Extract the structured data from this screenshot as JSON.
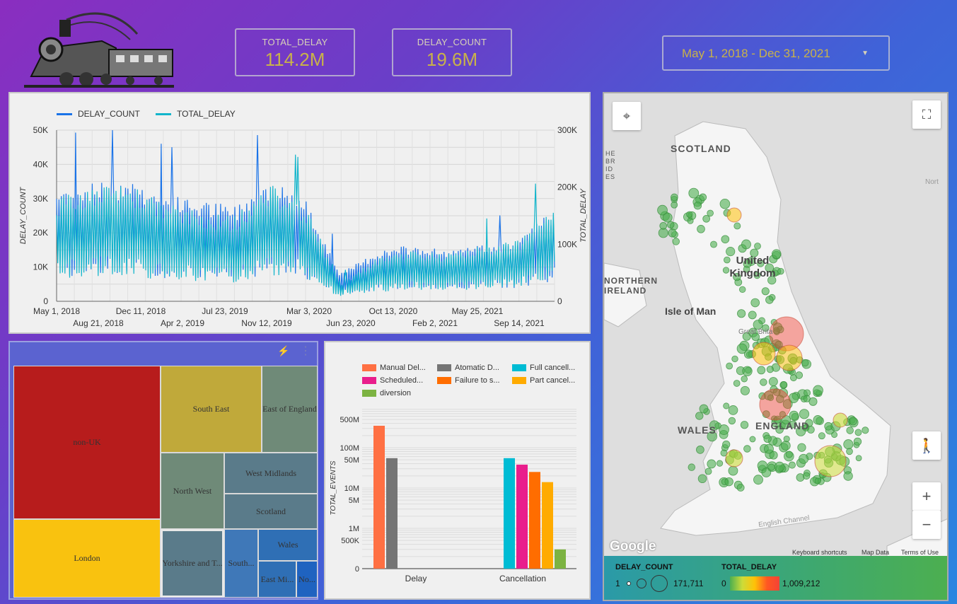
{
  "header": {
    "kpis": [
      {
        "label": "TOTAL_DELAY",
        "value": "114.2M"
      },
      {
        "label": "DELAY_COUNT",
        "value": "19.6M"
      }
    ],
    "date_range": "May 1, 2018 - Dec 31, 2021"
  },
  "colors": {
    "delay_count": "#1a73e8",
    "total_delay": "#12b5cb"
  },
  "line_chart": {
    "legend": [
      "DELAY_COUNT",
      "TOTAL_DELAY"
    ],
    "y_left_label": "DELAY_COUNT",
    "y_right_label": "TOTAL_DELAY",
    "y_left_ticks": [
      "50K",
      "40K",
      "30K",
      "20K",
      "10K",
      "0"
    ],
    "y_right_ticks": [
      "300K",
      "200K",
      "100K",
      "0"
    ],
    "x_ticks_top": [
      "May 1, 2018",
      "Dec 11, 2018",
      "Jul 23, 2019",
      "Mar 3, 2020",
      "Oct 13, 2020",
      "May 25, 2021"
    ],
    "x_ticks_bottom": [
      "Aug 21, 2018",
      "Apr 2, 2019",
      "Nov 12, 2019",
      "Jun 23, 2020",
      "Feb 2, 2021",
      "Sep 14, 2021"
    ]
  },
  "chart_data": [
    {
      "type": "line",
      "x_range": [
        "2018-05-01",
        "2021-12-31"
      ],
      "series": [
        {
          "name": "DELAY_COUNT",
          "axis": "left",
          "x": [
            "2018-05",
            "2018-08",
            "2018-11",
            "2019-02",
            "2019-05",
            "2019-08",
            "2019-11",
            "2020-02",
            "2020-05",
            "2020-08",
            "2020-11",
            "2021-02",
            "2021-05",
            "2021-08",
            "2021-11"
          ],
          "values": [
            20000,
            21000,
            22000,
            19000,
            18000,
            17000,
            22000,
            18000,
            5000,
            9000,
            10000,
            9000,
            10000,
            11000,
            17000
          ]
        },
        {
          "name": "TOTAL_DELAY",
          "axis": "right",
          "x": [
            "2018-05",
            "2018-08",
            "2018-11",
            "2019-02",
            "2019-05",
            "2019-08",
            "2019-11",
            "2020-02",
            "2020-05",
            "2020-08",
            "2020-11",
            "2021-02",
            "2021-05",
            "2021-08",
            "2021-11"
          ],
          "values": [
            110000,
            120000,
            125000,
            105000,
            95000,
            90000,
            125000,
            100000,
            20000,
            45000,
            55000,
            50000,
            60000,
            65000,
            110000
          ]
        }
      ],
      "ylim_left": [
        0,
        50000
      ],
      "ylim_right": [
        0,
        300000
      ]
    },
    {
      "type": "treemap",
      "cells": [
        {
          "label": "non-UK"
        },
        {
          "label": "South East"
        },
        {
          "label": "East of England"
        },
        {
          "label": "London"
        },
        {
          "label": "North West"
        },
        {
          "label": "West Midlands"
        },
        {
          "label": "Scotland"
        },
        {
          "label": "Yorkshire and T..."
        },
        {
          "label": "South..."
        },
        {
          "label": "Wales"
        },
        {
          "label": "East Mi..."
        },
        {
          "label": "No..."
        }
      ]
    },
    {
      "type": "bar",
      "scale": "log",
      "categories": [
        "Delay",
        "Cancellation"
      ],
      "ylabel": "TOTAL_EVENTS",
      "y_ticks": [
        "500M",
        "100M",
        "50M",
        "10M",
        "5M",
        "1M",
        "500K",
        "0"
      ],
      "legend": [
        "Manual Del...",
        "Atomatic D...",
        "Full cancell...",
        "Scheduled...",
        "Failure to s...",
        "Part cancel...",
        "diversion"
      ],
      "series": [
        {
          "name": "Manual Del...",
          "values": [
            350000000,
            null
          ]
        },
        {
          "name": "Atomatic D...",
          "values": [
            55000000,
            null
          ]
        },
        {
          "name": "Full cancell...",
          "values": [
            null,
            55000000
          ]
        },
        {
          "name": "Scheduled...",
          "values": [
            null,
            38000000
          ]
        },
        {
          "name": "Failure to s...",
          "values": [
            null,
            25000000
          ]
        },
        {
          "name": "Part cancel...",
          "values": [
            null,
            14000000
          ]
        },
        {
          "name": "diversion",
          "values": [
            null,
            300000
          ]
        }
      ]
    }
  ],
  "bar_colors": [
    "#ff7043",
    "#757575",
    "#00bcd4",
    "#e91e8c",
    "#ff6d00",
    "#ffab00",
    "#7cb342"
  ],
  "map": {
    "labels": [
      "SCOTLAND",
      "United Kingdom",
      "NORTHERN IRELAND",
      "Isle of Man",
      "WALES",
      "ENGLAND",
      "HEBRIDES",
      "Nort",
      "English Channel",
      "Great Brita"
    ],
    "footer": [
      "Keyboard shortcuts",
      "Map Data",
      "Terms of Use"
    ],
    "google_logo": "Google",
    "legend": {
      "size_title": "DELAY_COUNT",
      "size_min": "1",
      "size_max": "171,711",
      "color_title": "TOTAL_DELAY",
      "color_min": "0",
      "color_max": "1,009,212"
    }
  }
}
